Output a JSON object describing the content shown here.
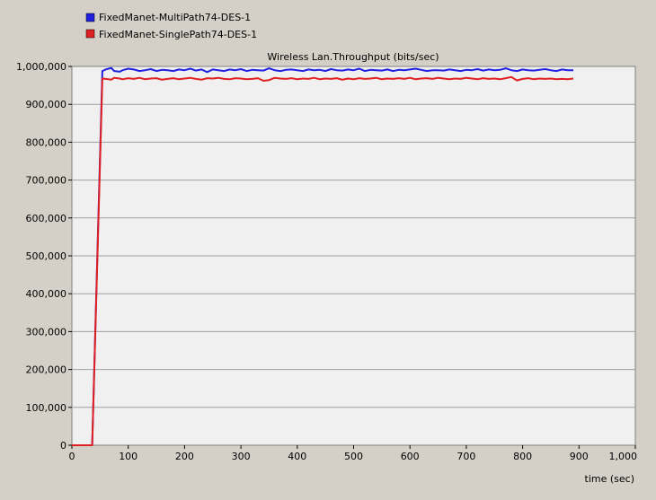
{
  "chart_data": {
    "type": "line",
    "title": "Wireless Lan.Throughput (bits/sec)",
    "xlabel": "time (sec)",
    "ylabel": "",
    "xlim": [
      0,
      1000
    ],
    "ylim": [
      0,
      1000000
    ],
    "x_ticks": [
      0,
      100,
      200,
      300,
      400,
      500,
      600,
      700,
      800,
      900,
      1000
    ],
    "x_tick_labels": [
      "0",
      "100",
      "200",
      "300",
      "400",
      "500",
      "600",
      "700",
      "800",
      "900",
      "1,000"
    ],
    "y_ticks": [
      0,
      100000,
      200000,
      300000,
      400000,
      500000,
      600000,
      700000,
      800000,
      900000,
      1000000
    ],
    "y_tick_labels": [
      "0",
      "100,000",
      "200,000",
      "300,000",
      "400,000",
      "500,000",
      "600,000",
      "700,000",
      "800,000",
      "900,000",
      "1,000,000"
    ],
    "grid": true,
    "legend_position": "top-left",
    "colors": {
      "background": "#d4d0c8",
      "plot": "#f0f0f0",
      "grid": "#a0a0a0"
    },
    "series": [
      {
        "name": "FixedManet-MultiPath74-DES-1",
        "color": "#2020e0",
        "x": [
          0,
          10,
          20,
          30,
          36,
          54,
          60,
          70,
          75,
          85,
          90,
          100,
          110,
          120,
          130,
          140,
          150,
          160,
          170,
          180,
          190,
          200,
          210,
          220,
          230,
          240,
          250,
          260,
          270,
          280,
          290,
          300,
          310,
          320,
          330,
          340,
          350,
          360,
          370,
          380,
          390,
          400,
          410,
          420,
          430,
          440,
          450,
          460,
          470,
          480,
          490,
          500,
          510,
          520,
          530,
          540,
          550,
          560,
          570,
          580,
          590,
          600,
          610,
          620,
          630,
          640,
          650,
          660,
          670,
          680,
          690,
          700,
          710,
          720,
          730,
          740,
          750,
          760,
          770,
          780,
          790,
          800,
          810,
          820,
          830,
          840,
          850,
          860,
          870,
          880,
          890
        ],
        "y": [
          0,
          0,
          0,
          0,
          0,
          988000,
          992000,
          996000,
          988000,
          986000,
          990000,
          994000,
          992000,
          988000,
          990000,
          993000,
          988000,
          991000,
          990000,
          988000,
          992000,
          990000,
          994000,
          989000,
          992000,
          985000,
          992000,
          990000,
          988000,
          992000,
          990000,
          993000,
          988000,
          991000,
          990000,
          989000,
          995000,
          990000,
          988000,
          991000,
          992000,
          990000,
          988000,
          992000,
          990000,
          991000,
          988000,
          993000,
          990000,
          989000,
          992000,
          990000,
          994000,
          988000,
          991000,
          990000,
          989000,
          992000,
          988000,
          991000,
          990000,
          992000,
          994000,
          991000,
          988000,
          990000,
          990000,
          989000,
          992000,
          990000,
          988000,
          991000,
          990000,
          993000,
          989000,
          992000,
          990000,
          991000,
          995000,
          990000,
          988000,
          992000,
          990000,
          989000,
          991000,
          993000,
          990000,
          988000,
          992000,
          990000,
          990000
        ]
      },
      {
        "name": "FixedManet-SinglePath74-DES-1",
        "color": "#e02020",
        "x": [
          0,
          10,
          20,
          30,
          36,
          54,
          60,
          70,
          75,
          85,
          90,
          100,
          110,
          120,
          130,
          140,
          150,
          160,
          170,
          180,
          190,
          200,
          210,
          220,
          230,
          240,
          250,
          260,
          270,
          280,
          290,
          300,
          310,
          320,
          330,
          340,
          350,
          360,
          370,
          380,
          390,
          400,
          410,
          420,
          430,
          440,
          450,
          460,
          470,
          480,
          490,
          500,
          510,
          520,
          530,
          540,
          550,
          560,
          570,
          580,
          590,
          600,
          610,
          620,
          630,
          640,
          650,
          660,
          670,
          680,
          690,
          700,
          710,
          720,
          730,
          740,
          750,
          760,
          770,
          780,
          790,
          800,
          810,
          820,
          830,
          840,
          850,
          860,
          870,
          880,
          890
        ],
        "y": [
          0,
          0,
          0,
          0,
          0,
          968000,
          967000,
          965000,
          970000,
          968000,
          966000,
          969000,
          967000,
          970000,
          966000,
          968000,
          969000,
          965000,
          967000,
          969000,
          966000,
          968000,
          970000,
          967000,
          965000,
          969000,
          968000,
          970000,
          967000,
          966000,
          969000,
          968000,
          966000,
          967000,
          969000,
          962000,
          964000,
          970000,
          968000,
          967000,
          969000,
          966000,
          968000,
          967000,
          970000,
          966000,
          968000,
          967000,
          969000,
          965000,
          968000,
          966000,
          969000,
          967000,
          968000,
          970000,
          966000,
          968000,
          967000,
          969000,
          967000,
          970000,
          966000,
          968000,
          969000,
          967000,
          970000,
          968000,
          966000,
          968000,
          967000,
          970000,
          968000,
          966000,
          969000,
          967000,
          968000,
          966000,
          969000,
          972000,
          963000,
          967000,
          969000,
          966000,
          968000,
          967000,
          968000,
          966000,
          967000,
          966000,
          968000
        ]
      }
    ]
  }
}
